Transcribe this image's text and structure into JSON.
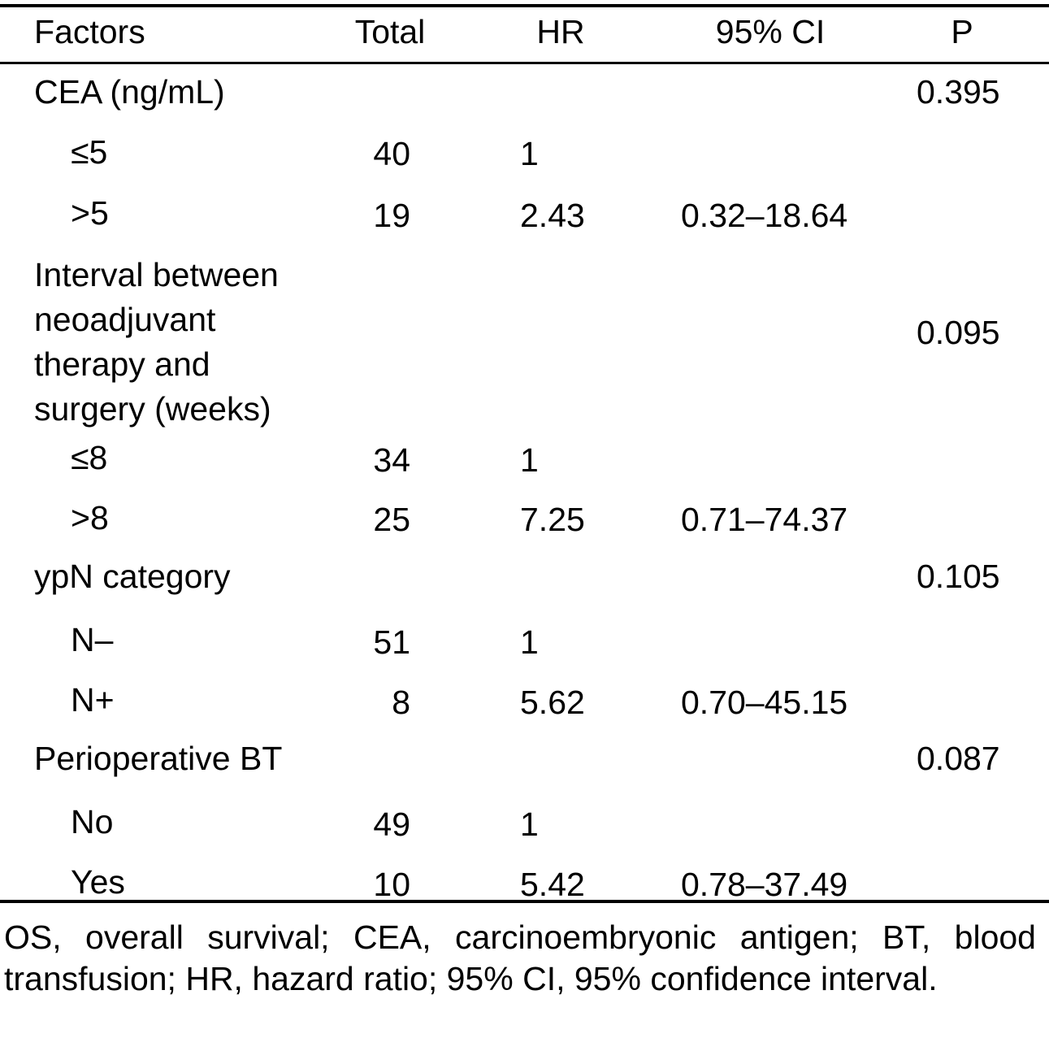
{
  "table": {
    "headers": {
      "factors": "Factors",
      "total": "Total",
      "hr": "HR",
      "ci": "95% CI",
      "p": "P"
    },
    "groups": [
      {
        "factor": "CEA (ng/mL)",
        "p": "0.395",
        "rows": [
          {
            "level": "≤5",
            "total": "40",
            "hr": "1",
            "ci": ""
          },
          {
            "level": ">5",
            "total": "19",
            "hr": "2.43",
            "ci": "0.32–18.64"
          }
        ]
      },
      {
        "factor_lines": [
          "Interval between",
          "neoadjuvant",
          "therapy and",
          "surgery (weeks)"
        ],
        "p": "0.095",
        "rows": [
          {
            "level": "≤8",
            "total": "34",
            "hr": "1",
            "ci": ""
          },
          {
            "level": ">8",
            "total": "25",
            "hr": "7.25",
            "ci": "0.71–74.37"
          }
        ]
      },
      {
        "factor": "ypN category",
        "p": "0.105",
        "rows": [
          {
            "level": "N–",
            "total": "51",
            "hr": "1",
            "ci": ""
          },
          {
            "level": "N+",
            "total": "8",
            "hr": "5.62",
            "ci": "0.70–45.15"
          }
        ]
      },
      {
        "factor": "Perioperative BT",
        "p": "0.087",
        "rows": [
          {
            "level": "No",
            "total": "49",
            "hr": "1",
            "ci": ""
          },
          {
            "level": "Yes",
            "total": "10",
            "hr": "5.42",
            "ci": "0.78–37.49"
          }
        ]
      }
    ],
    "footnote": "OS, overall survival; CEA, carcinoembryonic antigen; BT, blood transfusion; HR, hazard ratio; 95% CI, 95% confidence interval."
  }
}
